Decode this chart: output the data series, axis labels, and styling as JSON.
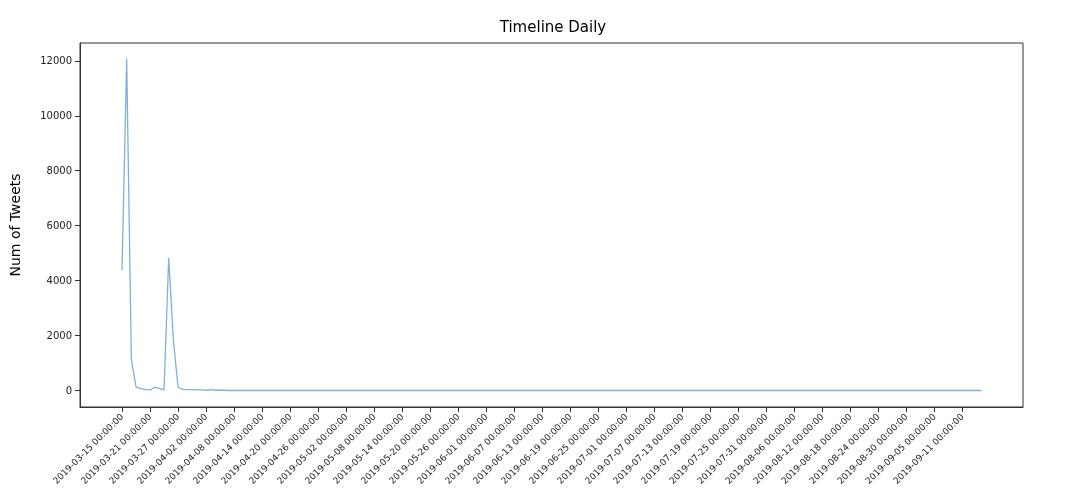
{
  "chart_data": {
    "type": "line",
    "title": "Timeline Daily",
    "ylabel": "Num of Tweets",
    "color": "#7fb0d8",
    "x": [
      "2019-03-15",
      "2019-03-16",
      "2019-03-17",
      "2019-03-18",
      "2019-03-19",
      "2019-03-20",
      "2019-03-21",
      "2019-03-22",
      "2019-03-23",
      "2019-03-24",
      "2019-03-25",
      "2019-03-26",
      "2019-03-27",
      "2019-03-28",
      "2019-03-29",
      "2019-03-30",
      "2019-03-31",
      "2019-04-01",
      "2019-04-02",
      "2019-04-03",
      "2019-04-04",
      "2019-04-05",
      "2019-04-06",
      "2019-04-07",
      "2019-04-08",
      "2019-04-14",
      "2019-04-26",
      "2019-05-14",
      "2019-06-01",
      "2019-06-19",
      "2019-07-07",
      "2019-07-25",
      "2019-08-12",
      "2019-08-30",
      "2019-09-15"
    ],
    "values": [
      4400,
      12060,
      1130,
      130,
      70,
      40,
      20,
      120,
      80,
      20,
      4820,
      1850,
      120,
      40,
      30,
      30,
      20,
      20,
      10,
      30,
      10,
      10,
      10,
      0,
      0,
      0,
      0,
      0,
      0,
      0,
      0,
      0,
      0,
      0,
      0
    ],
    "xlim": [
      "2019-03-06",
      "2019-09-24"
    ],
    "ylim": [
      -600,
      12650
    ],
    "xticks": [
      {
        "value": "2019-03-15",
        "label": "2019-03-15 00:00:00"
      },
      {
        "value": "2019-03-21",
        "label": "2019-03-21 00:00:00"
      },
      {
        "value": "2019-03-27",
        "label": "2019-03-27 00:00:00"
      },
      {
        "value": "2019-04-02",
        "label": "2019-04-02 00:00:00"
      },
      {
        "value": "2019-04-08",
        "label": "2019-04-08 00:00:00"
      },
      {
        "value": "2019-04-14",
        "label": "2019-04-14 00:00:00"
      },
      {
        "value": "2019-04-20",
        "label": "2019-04-20 00:00:00"
      },
      {
        "value": "2019-04-26",
        "label": "2019-04-26 00:00:00"
      },
      {
        "value": "2019-05-02",
        "label": "2019-05-02 00:00:00"
      },
      {
        "value": "2019-05-08",
        "label": "2019-05-08 00:00:00"
      },
      {
        "value": "2019-05-14",
        "label": "2019-05-14 00:00:00"
      },
      {
        "value": "2019-05-20",
        "label": "2019-05-20 00:00:00"
      },
      {
        "value": "2019-05-26",
        "label": "2019-05-26 00:00:00"
      },
      {
        "value": "2019-06-01",
        "label": "2019-06-01 00:00:00"
      },
      {
        "value": "2019-06-07",
        "label": "2019-06-07 00:00:00"
      },
      {
        "value": "2019-06-13",
        "label": "2019-06-13 00:00:00"
      },
      {
        "value": "2019-06-19",
        "label": "2019-06-19 00:00:00"
      },
      {
        "value": "2019-06-25",
        "label": "2019-06-25 00:00:00"
      },
      {
        "value": "2019-07-01",
        "label": "2019-07-01 00:00:00"
      },
      {
        "value": "2019-07-07",
        "label": "2019-07-07 00:00:00"
      },
      {
        "value": "2019-07-13",
        "label": "2019-07-13 00:00:00"
      },
      {
        "value": "2019-07-19",
        "label": "2019-07-19 00:00:00"
      },
      {
        "value": "2019-07-25",
        "label": "2019-07-25 00:00:00"
      },
      {
        "value": "2019-07-31",
        "label": "2019-07-31 00:00:00"
      },
      {
        "value": "2019-08-06",
        "label": "2019-08-06 00:00:00"
      },
      {
        "value": "2019-08-12",
        "label": "2019-08-12 00:00:00"
      },
      {
        "value": "2019-08-18",
        "label": "2019-08-18 00:00:00"
      },
      {
        "value": "2019-08-24",
        "label": "2019-08-24 00:00:00"
      },
      {
        "value": "2019-08-30",
        "label": "2019-08-30 00:00:00"
      },
      {
        "value": "2019-09-05",
        "label": "2019-09-05 00:00:00"
      },
      {
        "value": "2019-09-11",
        "label": "2019-09-11 00:00:00"
      }
    ],
    "yticks": [
      0,
      2000,
      4000,
      6000,
      8000,
      10000,
      12000
    ]
  }
}
